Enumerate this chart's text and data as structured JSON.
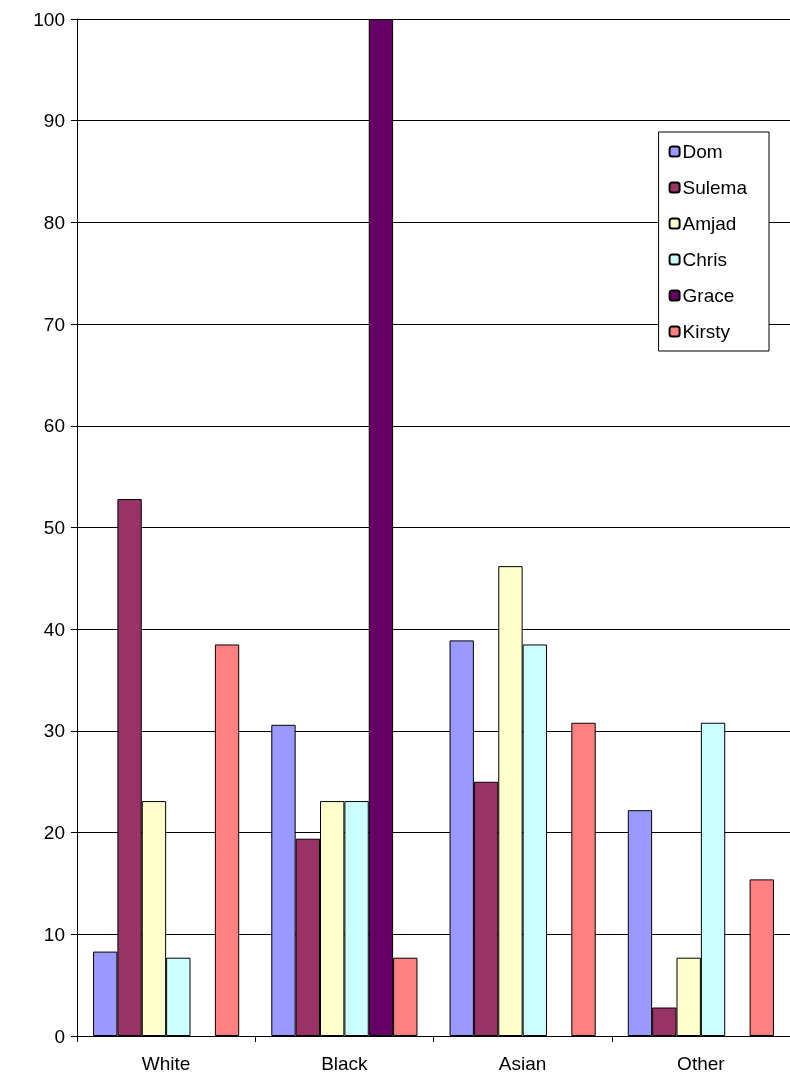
{
  "chart_data": {
    "type": "bar",
    "categories": [
      "White",
      "Black",
      "Asian",
      "Other"
    ],
    "series": [
      {
        "name": "Dom",
        "color": "#9999ff",
        "values": [
          8.3,
          30.6,
          38.9,
          22.2
        ]
      },
      {
        "name": "Sulema",
        "color": "#993366",
        "values": [
          52.8,
          19.4,
          25,
          2.8
        ]
      },
      {
        "name": "Amjad",
        "color": "#ffffcc",
        "values": [
          23.1,
          23.1,
          46.2,
          7.7
        ]
      },
      {
        "name": "Chris",
        "color": "#ccffff",
        "values": [
          7.7,
          23.1,
          38.5,
          30.8
        ]
      },
      {
        "name": "Grace",
        "color": "#660066",
        "values": [
          null,
          100,
          null,
          null
        ]
      },
      {
        "name": "Kirsty",
        "color": "#ff8080",
        "values": [
          38.5,
          7.7,
          30.8,
          15.4
        ]
      }
    ],
    "ylim": [
      0,
      100
    ],
    "yticks": [
      0,
      10,
      20,
      30,
      40,
      50,
      60,
      70,
      80,
      90,
      100
    ],
    "grid": "y",
    "legend": "top right"
  }
}
